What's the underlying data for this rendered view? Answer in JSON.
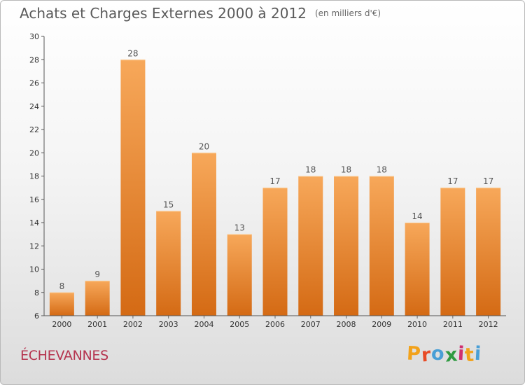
{
  "chart_data": {
    "type": "bar",
    "title": "Achats et Charges Externes 2000 à 2012",
    "subtitle": "(en milliers d'€)",
    "categories": [
      "2000",
      "2001",
      "2002",
      "2003",
      "2004",
      "2005",
      "2006",
      "2007",
      "2008",
      "2009",
      "2010",
      "2011",
      "2012"
    ],
    "values": [
      8,
      9,
      28,
      15,
      20,
      13,
      17,
      18,
      18,
      18,
      14,
      17,
      17
    ],
    "ylim": [
      6,
      30
    ],
    "yticks": [
      6,
      8,
      10,
      12,
      14,
      16,
      18,
      20,
      22,
      24,
      26,
      28,
      30
    ],
    "xlabel": "",
    "ylabel": "",
    "grid": false,
    "legend": "none",
    "bar_color": "#f0903a"
  },
  "commune": "ÉCHEVANNES",
  "brand": {
    "text": "Proxiti",
    "letters": [
      "P",
      "r",
      "o",
      "x",
      "i",
      "t",
      "i"
    ],
    "colors": [
      "#f2a21b",
      "#e84b26",
      "#4a9fd6",
      "#2f9a41",
      "#d02e6f",
      "#f2a21b",
      "#4a9fd6"
    ]
  }
}
